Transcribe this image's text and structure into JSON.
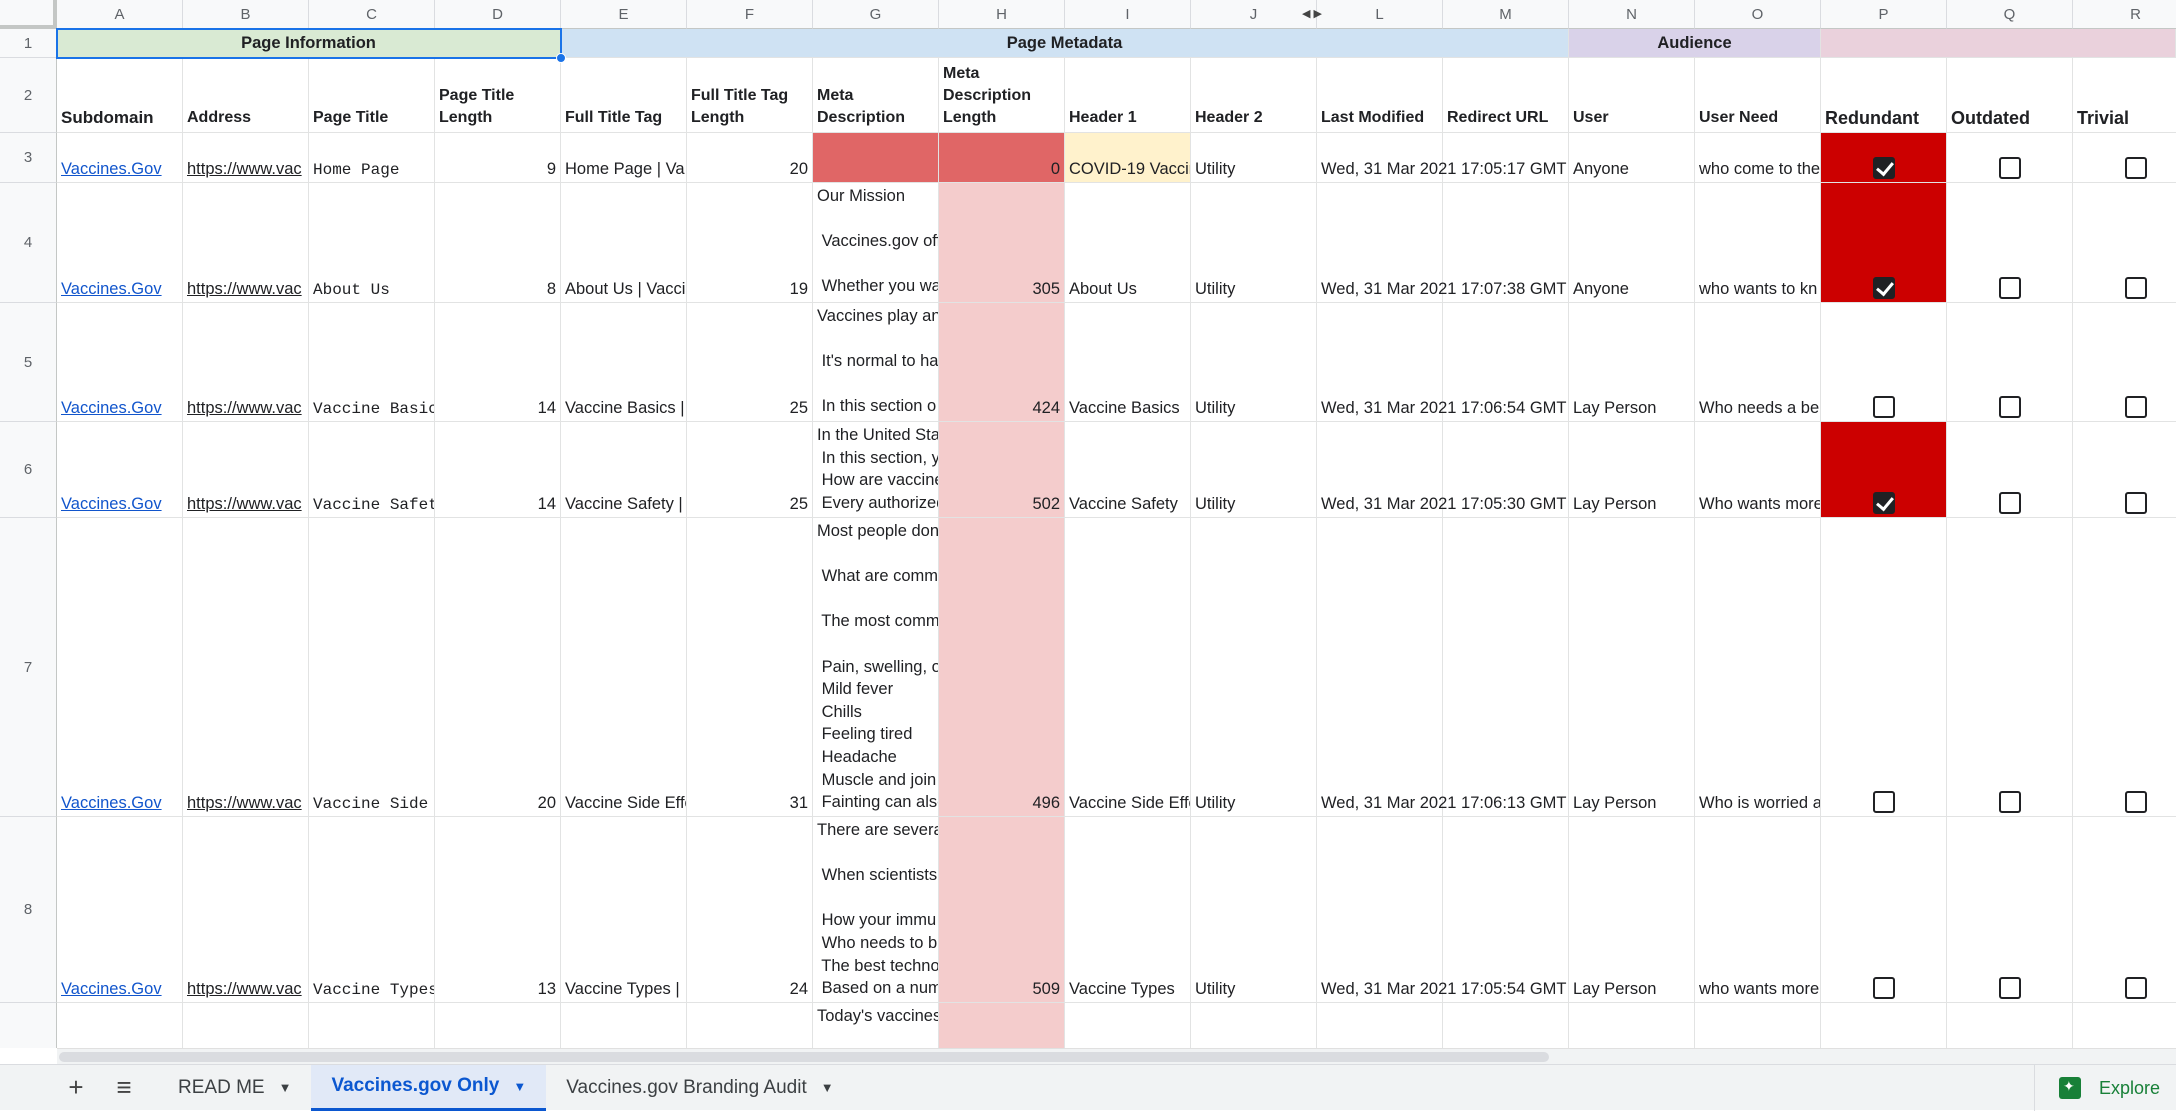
{
  "columns": [
    "A",
    "B",
    "C",
    "D",
    "E",
    "F",
    "G",
    "H",
    "I",
    "J",
    "L",
    "M",
    "N",
    "O",
    "P",
    "Q",
    "R"
  ],
  "row_numbers": [
    "1",
    "2",
    "3",
    "4",
    "5",
    "6",
    "7",
    "8"
  ],
  "bands": {
    "page_information": "Page Information",
    "page_metadata": "Page Metadata",
    "audience": "Audience"
  },
  "headers": {
    "subdomain": "Subdomain",
    "address": "Address",
    "page_title": "Page Title",
    "page_title_length": "Page Title Length",
    "full_title_tag": "Full Title Tag",
    "full_title_tag_length": "Full Title Tag Length",
    "meta_description": "Meta Description",
    "meta_description_length": "Meta Description Length",
    "header_1": "Header 1",
    "header_2": "Header 2",
    "last_modified": "Last Modified",
    "redirect_url": "Redirect URL",
    "user": "User",
    "user_need": "User Need",
    "redundant": "Redundant",
    "outdated": "Outdated",
    "trivial": "Trivial"
  },
  "rows": [
    {
      "subdomain": "Vaccines.Gov",
      "address": "https://www.vac",
      "page_title": "Home Page",
      "title_len": "9",
      "full_title": "Home Page | Va",
      "full_title_len": "20",
      "meta": "",
      "meta_len": "0",
      "h1": "COVID-19 Vaccin",
      "h2": "Utility",
      "modified": "Wed, 31 Mar 2021 17:05:17 GMT",
      "user": "Anyone",
      "need": "who come to the",
      "redundant": true,
      "outdated": false,
      "trivial": false
    },
    {
      "subdomain": "Vaccines.Gov",
      "address": "https://www.vac",
      "page_title": "About Us",
      "title_len": "8",
      "full_title": "About Us | Vacci",
      "full_title_len": "19",
      "meta": "Our Mission\n\n Vaccines.gov off\n\n Whether you wa",
      "meta_len": "305",
      "h1": "About Us",
      "h2": "Utility",
      "modified": "Wed, 31 Mar 2021 17:07:38 GMT",
      "user": "Anyone",
      "need": "who wants to kn",
      "redundant": true,
      "outdated": false,
      "trivial": false
    },
    {
      "subdomain": "Vaccines.Gov",
      "address": "https://www.vac",
      "page_title": "Vaccine Basics",
      "title_len": "14",
      "full_title": "Vaccine Basics |",
      "full_title_len": "25",
      "meta": "Vaccines play an\n\n It's normal to ha\n\n In this section o",
      "meta_len": "424",
      "h1": "Vaccine Basics",
      "h2": "Utility",
      "modified": "Wed, 31 Mar 2021 17:06:54 GMT",
      "user": "Lay Person",
      "need": "Who needs a be",
      "redundant": false,
      "outdated": false,
      "trivial": false
    },
    {
      "subdomain": "Vaccines.Gov",
      "address": "https://www.vac",
      "page_title": "Vaccine Safety",
      "title_len": "14",
      "full_title": "Vaccine Safety |",
      "full_title_len": "25",
      "meta": "In the United Sta\n In this section, y\n How are vaccine\n Every authorized",
      "meta_len": "502",
      "h1": "Vaccine Safety",
      "h2": "Utility",
      "modified": "Wed, 31 Mar 2021 17:05:30 GMT",
      "user": "Lay Person",
      "need": "Who wants more",
      "redundant": true,
      "outdated": false,
      "trivial": false
    },
    {
      "subdomain": "Vaccines.Gov",
      "address": "https://www.vac",
      "page_title": "Vaccine Side E",
      "title_len": "20",
      "full_title": "Vaccine Side Effe",
      "full_title_len": "31",
      "meta": "Most people don\n\n What are comm\n\n The most comm\n\n Pain, swelling, o\n Mild fever\n Chills\n Feeling tired\n Headache\n Muscle and join\n Fainting can also",
      "meta_len": "496",
      "h1": "Vaccine Side Effe",
      "h2": "Utility",
      "modified": "Wed, 31 Mar 2021 17:06:13 GMT",
      "user": "Lay Person",
      "need": "Who is worried a",
      "redundant": false,
      "outdated": false,
      "trivial": false
    },
    {
      "subdomain": "Vaccines.Gov",
      "address": "https://www.vac",
      "page_title": "Vaccine Types",
      "title_len": "13",
      "full_title": "Vaccine Types |",
      "full_title_len": "24",
      "meta": "There are severa\n\n When scientists\n\n How your immu\n Who needs to b\n The best techno\n Based on a num",
      "meta_len": "509",
      "h1": "Vaccine Types",
      "h2": "Utility",
      "modified": "Wed, 31 Mar 2021 17:05:54 GMT",
      "user": "Lay Person",
      "need": "who wants more",
      "redundant": false,
      "outdated": false,
      "trivial": false
    }
  ],
  "row9_meta": "Today's vaccines",
  "tabs": [
    {
      "label": "READ ME",
      "active": false
    },
    {
      "label": "Vaccines.gov Only",
      "active": true
    },
    {
      "label": "Vaccines.gov Branding Audit",
      "active": false
    }
  ],
  "explore_label": "Explore",
  "colors": {
    "band_page_information": "#d9ead3",
    "band_page_metadata": "#cfe2f3",
    "band_audience": "#d9d2e9",
    "band_rot": "#ead1dc",
    "meta_empty": "#e06666",
    "meta_length_fill": "#f4cccc",
    "header1_highlight": "#fff2cc",
    "redundant_flag": "#cc0000"
  }
}
